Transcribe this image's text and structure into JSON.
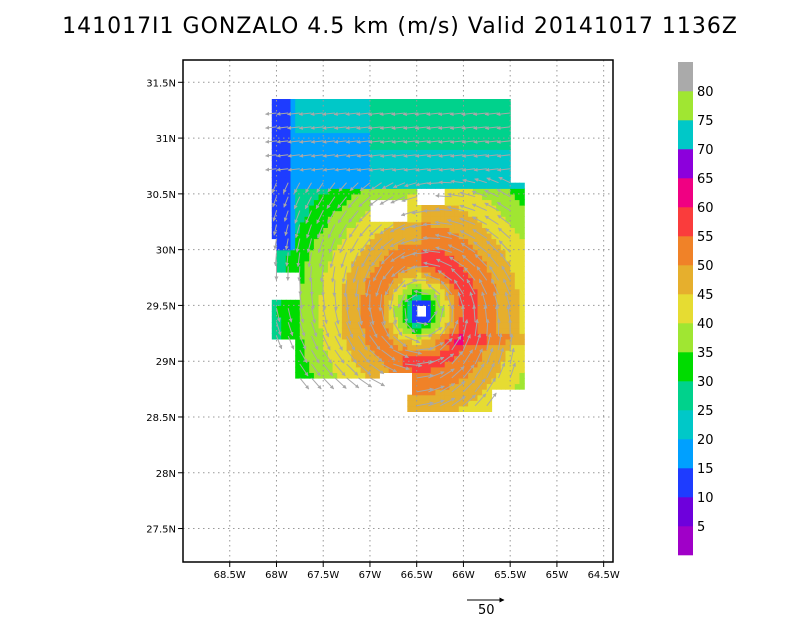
{
  "chart_data": {
    "type": "heatmap",
    "title": "141017I1 GONZALO 4.5 km (m/s) Valid 20141017 1136Z",
    "xlabel": "",
    "ylabel": "",
    "xlim": [
      -69.0,
      -64.4
    ],
    "ylim": [
      27.2,
      31.7
    ],
    "grid": true,
    "x_ticks": [
      -68.5,
      -68,
      -67.5,
      -67,
      -66.5,
      -66,
      -65.5,
      -65,
      -64.5
    ],
    "x_tick_labels": [
      "68.5W",
      "68W",
      "67.5W",
      "67W",
      "66.5W",
      "66W",
      "65.5W",
      "65W",
      "64.5W"
    ],
    "y_ticks": [
      27.5,
      28,
      28.5,
      29,
      29.5,
      30,
      30.5,
      31,
      31.5
    ],
    "y_tick_labels": [
      "27.5N",
      "28N",
      "28.5N",
      "29N",
      "29.5N",
      "30N",
      "30.5N",
      "31N",
      "31.5N"
    ],
    "center": {
      "lon": -66.45,
      "lat": 29.45
    },
    "colorbar": {
      "levels": [
        0,
        5,
        10,
        15,
        20,
        25,
        30,
        35,
        40,
        45,
        50,
        55,
        60,
        65,
        70,
        75,
        80,
        85
      ],
      "labels": [
        "5",
        "10",
        "15",
        "20",
        "25",
        "30",
        "35",
        "40",
        "45",
        "50",
        "55",
        "60",
        "65",
        "70",
        "75",
        "80"
      ],
      "colors": [
        "#a000c8",
        "#6e00dc",
        "#1e3cff",
        "#00a0ff",
        "#00c8c8",
        "#00d28c",
        "#00dc00",
        "#a0e632",
        "#e6dc32",
        "#e6af2d",
        "#f08228",
        "#fa3c3c",
        "#f00082",
        "#8c00dc",
        "#00c8c8",
        "#a0e632",
        "#aaaaaa"
      ]
    },
    "reference_vector": {
      "value": 50,
      "label": "50"
    }
  }
}
